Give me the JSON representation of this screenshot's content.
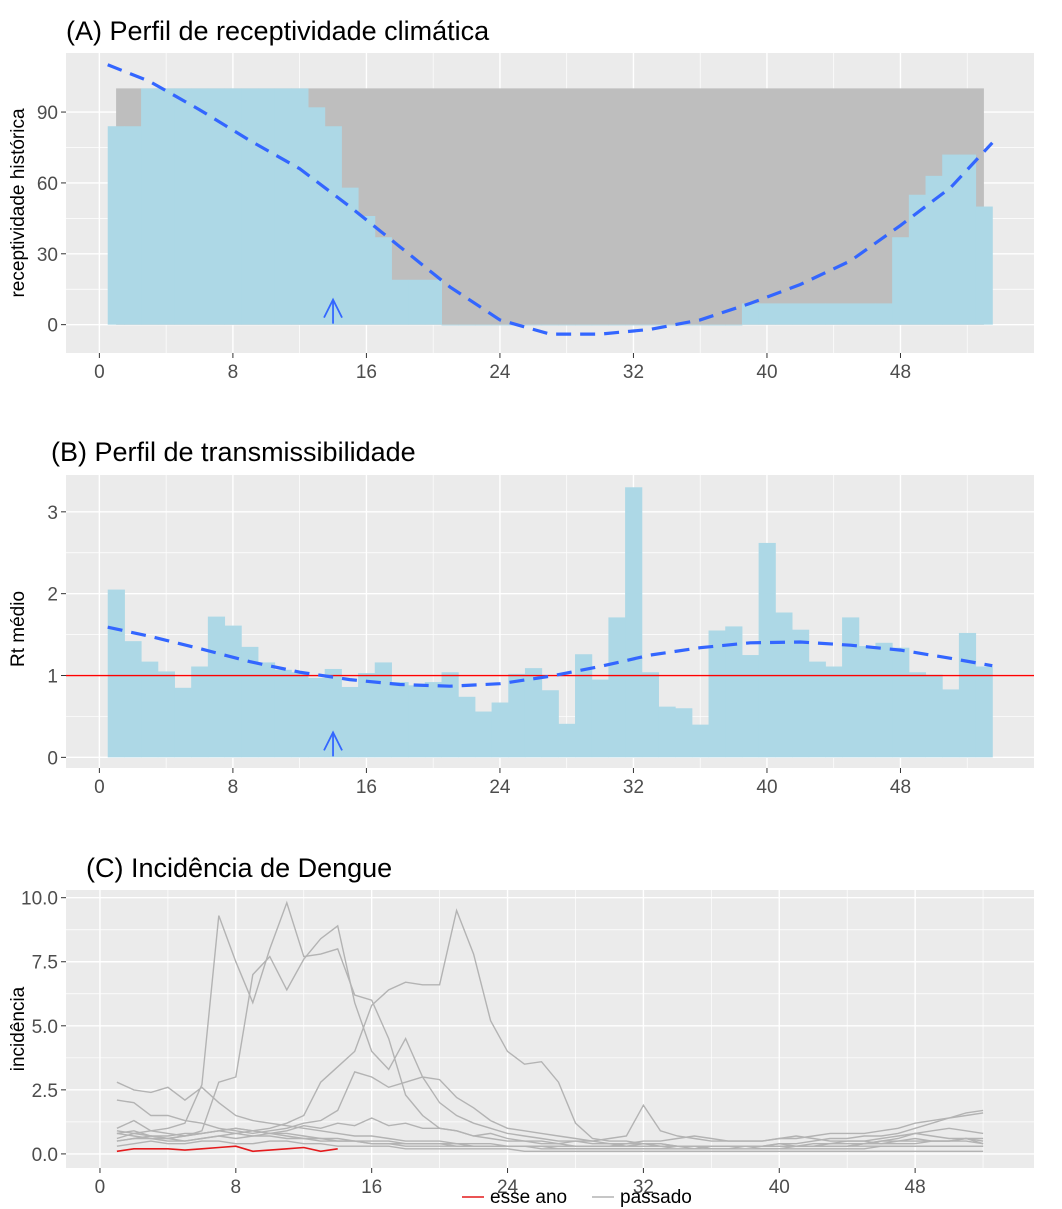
{
  "colors": {
    "panel_bg": "#EBEBEB",
    "grid": "#FFFFFF",
    "bar": "#ADD8E6",
    "band": "#BEBEBE",
    "trend": "#3366FF",
    "ref_line": "#FF0000",
    "this_year": "#E41A1C",
    "past": "#B3B3B3"
  },
  "chart_data": [
    {
      "id": "A",
      "type": "bar",
      "title": "(A) Perfil de receptividade climática",
      "ylabel": "receptividade histórica",
      "xlim": [
        -2,
        56
      ],
      "ylim": [
        -12,
        115
      ],
      "xticks": [
        0,
        8,
        16,
        24,
        32,
        40,
        48
      ],
      "yticks": [
        0,
        30,
        60,
        90
      ],
      "ytick_labels": [
        "0",
        "30",
        "60",
        "90"
      ],
      "current_week": 14,
      "band": {
        "weeks": [
          1,
          2,
          3,
          4,
          5,
          6,
          7,
          8,
          9,
          10,
          11,
          12,
          13,
          14,
          15,
          16,
          17,
          18,
          19,
          20,
          21,
          22,
          23,
          24,
          25,
          26,
          27,
          28,
          29,
          30,
          31,
          32,
          33,
          34,
          35,
          36,
          37,
          38,
          39,
          40,
          41,
          42,
          43,
          44,
          45,
          46,
          47,
          48,
          49,
          50,
          51,
          52,
          53
        ],
        "lower": [
          0,
          0,
          0,
          0,
          0,
          0,
          0,
          0,
          0,
          0,
          0,
          0,
          0,
          0,
          0,
          0,
          0,
          0,
          0,
          0,
          0,
          0,
          0,
          0,
          0,
          0,
          0,
          0,
          0,
          0,
          0,
          0,
          0,
          0,
          0,
          0,
          0,
          0,
          0,
          0,
          0,
          0,
          0,
          0,
          0,
          0,
          0,
          0,
          0,
          0,
          0,
          0,
          0
        ],
        "upper": [
          100,
          100,
          100,
          100,
          100,
          100,
          100,
          100,
          100,
          100,
          100,
          100,
          100,
          100,
          100,
          100,
          100,
          100,
          100,
          100,
          100,
          100,
          100,
          100,
          100,
          100,
          100,
          100,
          100,
          100,
          100,
          100,
          100,
          100,
          100,
          100,
          100,
          100,
          100,
          100,
          100,
          100,
          100,
          100,
          100,
          100,
          100,
          100,
          100,
          100,
          100,
          100,
          100
        ]
      },
      "weeks": [
        1,
        2,
        3,
        4,
        5,
        6,
        7,
        8,
        9,
        10,
        11,
        12,
        13,
        14,
        15,
        16,
        17,
        18,
        19,
        20,
        21,
        22,
        23,
        24,
        25,
        26,
        27,
        28,
        29,
        30,
        31,
        32,
        33,
        34,
        35,
        36,
        37,
        38,
        39,
        40,
        41,
        42,
        43,
        44,
        45,
        46,
        47,
        48,
        49,
        50,
        51,
        52,
        53
      ],
      "values": [
        84,
        84,
        100,
        100,
        100,
        100,
        100,
        100,
        100,
        100,
        100,
        100,
        92,
        84,
        58,
        46,
        37,
        19,
        19,
        19,
        0,
        0,
        0,
        0,
        0,
        0,
        0,
        0,
        0,
        0,
        0,
        0,
        0,
        0,
        0,
        0,
        0,
        0,
        9,
        9,
        9,
        9,
        9,
        9,
        9,
        9,
        9,
        37,
        55,
        63,
        72,
        72,
        50
      ],
      "trend": {
        "x": [
          0.5,
          3,
          6,
          9,
          12,
          15,
          18,
          21,
          24,
          27,
          30,
          33,
          36,
          39,
          42,
          45,
          48,
          51,
          53.5
        ],
        "y": [
          110,
          103,
          91,
          78,
          66,
          50,
          33,
          16,
          2,
          -4,
          -4,
          -2,
          2,
          9,
          17,
          27,
          42,
          58,
          77
        ]
      }
    },
    {
      "id": "B",
      "type": "bar",
      "title": "(B) Perfil de transmissibilidade",
      "ylabel": "Rt médio",
      "xlim": [
        -2,
        56
      ],
      "ylim": [
        -0.13,
        3.45
      ],
      "xticks": [
        0,
        8,
        16,
        24,
        32,
        40,
        48
      ],
      "yticks": [
        0,
        1,
        2,
        3
      ],
      "ytick_labels": [
        "0",
        "1",
        "2",
        "3"
      ],
      "ref_y": 1,
      "current_week": 14,
      "weeks": [
        1,
        2,
        3,
        4,
        5,
        6,
        7,
        8,
        9,
        10,
        11,
        12,
        13,
        14,
        15,
        16,
        17,
        18,
        19,
        20,
        21,
        22,
        23,
        24,
        25,
        26,
        27,
        28,
        29,
        30,
        31,
        32,
        33,
        34,
        35,
        36,
        37,
        38,
        39,
        40,
        41,
        42,
        43,
        44,
        45,
        46,
        47,
        48,
        49,
        50,
        51,
        52,
        53
      ],
      "values": [
        2.05,
        1.42,
        1.17,
        1.05,
        0.85,
        1.11,
        1.72,
        1.61,
        1.35,
        1.16,
        1.07,
        1.04,
        0.97,
        1.08,
        0.86,
        1.03,
        1.16,
        0.92,
        0.88,
        0.92,
        1.04,
        0.74,
        0.56,
        0.67,
        1.02,
        1.09,
        0.82,
        0.41,
        1.26,
        0.95,
        1.71,
        3.3,
        1.04,
        0.62,
        0.6,
        0.4,
        1.55,
        1.6,
        1.25,
        2.62,
        1.77,
        1.56,
        1.17,
        1.11,
        1.71,
        1.36,
        1.4,
        1.34,
        1.04,
        1.01,
        0.83,
        1.52,
        1.11
      ],
      "trend": {
        "x": [
          0.5,
          3,
          6,
          9,
          12,
          15,
          18,
          21,
          24,
          27,
          30,
          33,
          36,
          39,
          42,
          45,
          48,
          51,
          53.5
        ],
        "y": [
          1.59,
          1.48,
          1.33,
          1.17,
          1.04,
          0.95,
          0.89,
          0.87,
          0.9,
          0.99,
          1.11,
          1.25,
          1.34,
          1.4,
          1.41,
          1.37,
          1.31,
          1.21,
          1.12
        ]
      }
    },
    {
      "id": "C",
      "type": "line",
      "title": "(C) Incidência de Dengue",
      "ylabel": "incidência",
      "xlim": [
        -2,
        55
      ],
      "ylim": [
        -0.55,
        10.3
      ],
      "xticks": [
        0,
        8,
        16,
        24,
        32,
        40,
        48
      ],
      "yticks": [
        0,
        2.5,
        5,
        7.5,
        10
      ],
      "ytick_labels": [
        "0.0",
        "2.5",
        "5.0",
        "7.5",
        "10.0"
      ],
      "legend": [
        "esse ano",
        "passado"
      ],
      "x": [
        1,
        2,
        3,
        4,
        5,
        6,
        7,
        8,
        9,
        10,
        11,
        12,
        13,
        14,
        15,
        16,
        17,
        18,
        19,
        20,
        21,
        22,
        23,
        24,
        25,
        26,
        27,
        28,
        29,
        30,
        31,
        32,
        33,
        34,
        35,
        36,
        37,
        38,
        39,
        40,
        41,
        42,
        43,
        44,
        45,
        46,
        47,
        48,
        49,
        50,
        51,
        52
      ],
      "this_year": {
        "name": "esse ano",
        "values": [
          0.1,
          0.2,
          0.2,
          0.2,
          0.15,
          0.2,
          0.25,
          0.3,
          0.1,
          0.15,
          0.2,
          0.25,
          0.1,
          0.2
        ]
      },
      "past_series": [
        [
          0.6,
          0.8,
          0.9,
          1.0,
          1.2,
          2.7,
          9.3,
          7.5,
          5.9,
          8.0,
          9.8,
          7.7,
          7.8,
          8.0,
          6.2,
          6.0,
          4.5,
          2.3,
          1.5,
          1.0,
          0.9,
          0.7,
          0.8,
          0.6,
          0.5,
          0.5,
          0.4,
          0.3,
          0.3,
          0.3,
          0.3,
          0.4,
          0.3,
          0.3,
          0.2,
          0.3,
          0.3,
          0.3,
          0.3,
          0.4,
          0.3,
          0.3,
          0.4,
          0.5,
          0.5,
          0.4,
          0.5,
          0.6,
          0.5,
          0.5,
          0.6,
          0.4
        ],
        [
          0.8,
          0.9,
          0.7,
          0.6,
          0.7,
          0.9,
          2.8,
          3.0,
          7.0,
          7.7,
          6.4,
          7.6,
          8.4,
          8.9,
          5.9,
          4.0,
          3.3,
          4.5,
          3.0,
          2.0,
          1.5,
          1.2,
          1.0,
          0.8,
          0.7,
          0.6,
          0.5,
          0.5,
          0.4,
          0.4,
          0.3,
          0.3,
          0.3,
          0.3,
          0.3,
          0.2,
          0.2,
          0.3,
          0.3,
          0.3,
          0.3,
          0.3,
          0.3,
          0.3,
          0.4,
          0.5,
          0.6,
          0.8,
          0.7,
          0.6,
          0.6,
          0.5
        ],
        [
          0.5,
          0.6,
          0.6,
          0.5,
          0.5,
          0.6,
          0.7,
          0.8,
          0.9,
          1.0,
          1.2,
          1.5,
          2.8,
          3.4,
          4.0,
          5.8,
          6.4,
          6.7,
          6.6,
          6.6,
          9.5,
          7.8,
          5.2,
          4.0,
          3.5,
          3.6,
          2.8,
          1.2,
          0.6,
          0.5,
          0.5,
          0.4,
          0.4,
          0.3,
          0.3,
          0.3,
          0.3,
          0.3,
          0.3,
          0.3,
          0.3,
          0.4,
          0.4,
          0.4,
          0.4,
          0.5,
          0.5,
          0.5,
          0.5,
          0.5,
          0.5,
          0.4
        ],
        [
          2.8,
          2.5,
          2.4,
          2.6,
          2.1,
          2.6,
          2.0,
          1.5,
          1.3,
          1.2,
          1.1,
          1.0,
          0.9,
          0.8,
          0.7,
          0.7,
          0.6,
          0.5,
          0.5,
          0.5,
          0.4,
          0.4,
          0.4,
          0.3,
          0.3,
          0.3,
          0.3,
          0.3,
          0.3,
          0.3,
          0.4,
          0.4,
          0.4,
          0.3,
          0.3,
          0.3,
          0.3,
          0.3,
          0.3,
          0.4,
          0.4,
          0.5,
          0.6,
          0.6,
          0.7,
          0.7,
          0.8,
          1.0,
          1.2,
          1.4,
          1.5,
          1.6
        ],
        [
          2.1,
          2.0,
          1.5,
          1.5,
          1.3,
          1.2,
          1.0,
          0.9,
          0.8,
          0.9,
          1.0,
          1.2,
          1.3,
          1.7,
          3.2,
          3.0,
          2.6,
          2.8,
          3.0,
          2.9,
          2.2,
          1.8,
          1.3,
          1.0,
          0.9,
          0.8,
          0.7,
          0.6,
          0.5,
          0.4,
          0.4,
          0.5,
          0.5,
          0.6,
          0.7,
          0.6,
          0.5,
          0.5,
          0.5,
          0.6,
          0.6,
          0.7,
          0.8,
          0.8,
          0.8,
          0.9,
          1.0,
          1.2,
          1.3,
          1.4,
          1.6,
          1.7
        ],
        [
          1.0,
          1.3,
          0.9,
          0.8,
          0.7,
          0.8,
          0.9,
          1.0,
          0.9,
          0.8,
          0.9,
          1.1,
          1.0,
          1.2,
          1.1,
          1.4,
          1.1,
          1.2,
          1.0,
          1.0,
          0.9,
          0.7,
          0.6,
          0.5,
          0.5,
          0.4,
          0.4,
          0.5,
          0.5,
          0.6,
          0.7,
          1.9,
          0.9,
          0.7,
          0.6,
          0.5,
          0.5,
          0.5,
          0.5,
          0.6,
          0.7,
          0.6,
          0.5,
          0.5,
          0.5,
          0.6,
          0.7,
          0.8,
          0.9,
          1.0,
          0.9,
          0.8
        ],
        [
          0.8,
          0.7,
          0.6,
          0.6,
          0.5,
          0.6,
          0.7,
          0.6,
          0.7,
          0.8,
          0.8,
          0.7,
          0.6,
          0.6,
          0.5,
          0.5,
          0.5,
          0.4,
          0.4,
          0.4,
          0.4,
          0.3,
          0.3,
          0.3,
          0.3,
          0.3,
          0.3,
          0.3,
          0.3,
          0.3,
          0.3,
          0.3,
          0.3,
          0.3,
          0.3,
          0.3,
          0.3,
          0.3,
          0.3,
          0.3,
          0.3,
          0.3,
          0.3,
          0.3,
          0.3,
          0.3,
          0.3,
          0.3,
          0.3,
          0.3,
          0.3,
          0.3
        ],
        [
          0.5,
          0.6,
          0.7,
          0.6,
          0.7,
          0.8,
          0.9,
          1.0,
          0.9,
          0.8,
          0.7,
          0.6,
          0.6,
          0.5,
          0.5,
          0.4,
          0.4,
          0.3,
          0.3,
          0.3,
          0.3,
          0.3,
          0.3,
          0.3,
          0.3,
          0.2,
          0.2,
          0.2,
          0.2,
          0.2,
          0.2,
          0.2,
          0.2,
          0.2,
          0.2,
          0.2,
          0.2,
          0.2,
          0.2,
          0.2,
          0.2,
          0.2,
          0.2,
          0.2,
          0.2,
          0.3,
          0.3,
          0.3,
          0.3,
          0.3,
          0.3,
          0.3
        ],
        [
          0.3,
          0.4,
          0.5,
          0.4,
          0.4,
          0.5,
          0.5,
          0.4,
          0.4,
          0.5,
          0.5,
          0.4,
          0.4,
          0.3,
          0.3,
          0.3,
          0.3,
          0.2,
          0.2,
          0.2,
          0.2,
          0.2,
          0.2,
          0.2,
          0.1,
          0.1,
          0.1,
          0.1,
          0.1,
          0.1,
          0.1,
          0.1,
          0.1,
          0.1,
          0.1,
          0.1,
          0.1,
          0.1,
          0.1,
          0.1,
          0.1,
          0.1,
          0.1,
          0.1,
          0.1,
          0.1,
          0.1,
          0.1,
          0.1,
          0.1,
          0.1,
          0.1
        ],
        [
          0.9,
          0.8,
          0.7,
          0.7,
          0.8,
          0.8,
          0.9,
          0.8,
          0.7,
          0.7,
          0.6,
          0.6,
          0.5,
          0.5,
          0.5,
          0.4,
          0.4,
          0.4,
          0.4,
          0.4,
          0.3,
          0.3,
          0.3,
          0.3,
          0.3,
          0.3,
          0.2,
          0.2,
          0.2,
          0.2,
          0.2,
          0.2,
          0.2,
          0.3,
          0.3,
          0.3,
          0.3,
          0.3,
          0.2,
          0.2,
          0.3,
          0.3,
          0.3,
          0.3,
          0.4,
          0.4,
          0.4,
          0.4,
          0.5,
          0.5,
          0.6,
          0.6
        ]
      ]
    }
  ]
}
